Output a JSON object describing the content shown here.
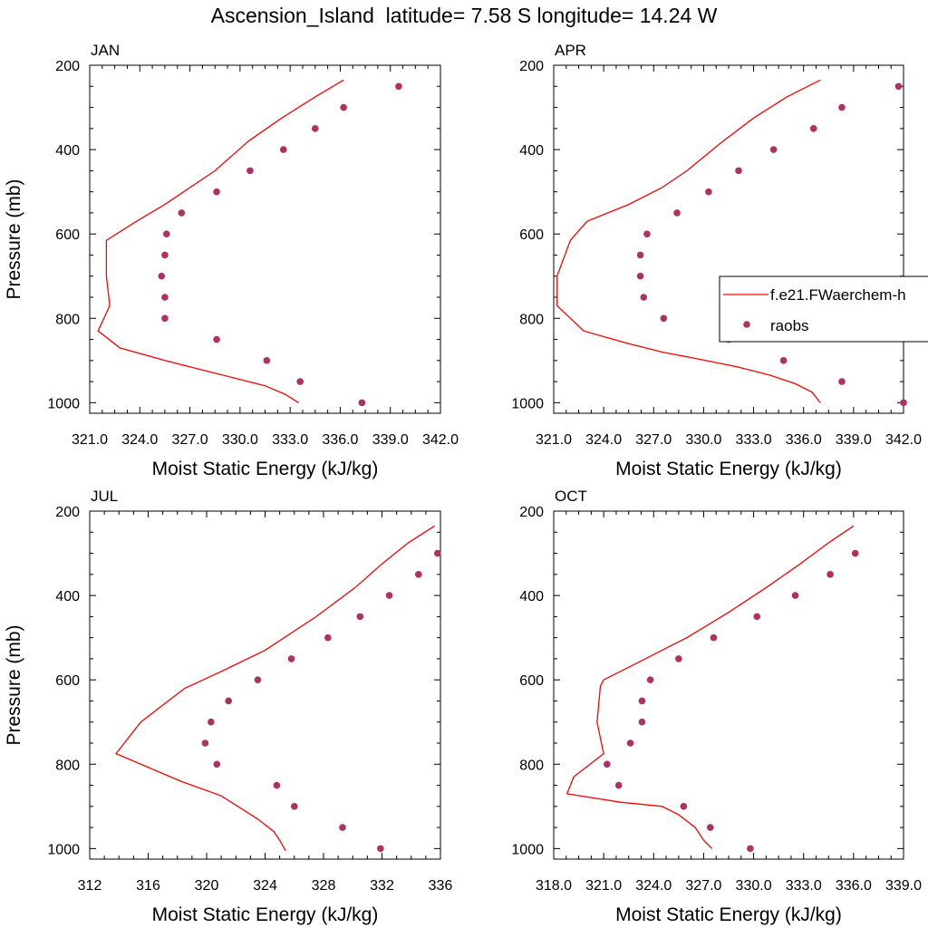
{
  "page": {
    "title": "Ascension_Island  latitude= 7.58 S longitude= 14.24 W"
  },
  "colors": {
    "model_line": "#ff0000",
    "obs_marker": "#b03060",
    "axis": "#000000"
  },
  "chart_data": [
    {
      "type": "line+scatter",
      "title": "JAN",
      "xlabel": "Moist Static Energy (kJ/kg)",
      "ylabel": "Pressure (mb)",
      "xlim": [
        321,
        342
      ],
      "ylim": [
        200,
        1025
      ],
      "y_reversed": true,
      "xticks": [
        "321.0",
        "324.0",
        "327.0",
        "330.0",
        "333.0",
        "336.0",
        "339.0",
        "342.0"
      ],
      "xtick_values": [
        321,
        324,
        327,
        330,
        333,
        336,
        339,
        342
      ],
      "yticks": [
        "200",
        "400",
        "600",
        "800",
        "1000"
      ],
      "ytick_values": [
        200,
        400,
        600,
        800,
        1000
      ],
      "grid": false,
      "series": [
        {
          "name": "",
          "kind": "line",
          "x": [
            336.2,
            334.5,
            332.5,
            330.5,
            328.5,
            325.5,
            323.8,
            322.0,
            322.0,
            322.2,
            321.5,
            322.8,
            325.5,
            327.5,
            329.5,
            331.5,
            332.7,
            333.5
          ],
          "y": [
            235,
            275,
            325,
            380,
            450,
            530,
            570,
            615,
            700,
            770,
            830,
            870,
            900,
            920,
            940,
            960,
            980,
            1000
          ]
        },
        {
          "name": "",
          "kind": "scatter",
          "x": [
            339.5,
            336.2,
            334.5,
            332.6,
            330.6,
            328.6,
            326.5,
            325.6,
            325.5,
            325.3,
            325.5,
            325.5,
            328.6,
            331.6,
            333.6,
            337.3
          ],
          "y": [
            250,
            300,
            350,
            400,
            450,
            500,
            550,
            600,
            650,
            700,
            750,
            800,
            850,
            900,
            950,
            1000
          ]
        }
      ]
    },
    {
      "type": "line+scatter",
      "title": "APR",
      "xlabel": "Moist Static Energy (kJ/kg)",
      "ylabel": "",
      "xlim": [
        321,
        342
      ],
      "ylim": [
        200,
        1025
      ],
      "y_reversed": true,
      "xticks": [
        "321.0",
        "324.0",
        "327.0",
        "330.0",
        "333.0",
        "336.0",
        "339.0",
        "342.0"
      ],
      "xtick_values": [
        321,
        324,
        327,
        330,
        333,
        336,
        339,
        342
      ],
      "yticks": [
        "200",
        "400",
        "600",
        "800",
        "1000"
      ],
      "ytick_values": [
        200,
        400,
        600,
        800,
        1000
      ],
      "grid": false,
      "legend": {
        "position": "right",
        "entries": [
          "f.e21.FWaerchem-h",
          "raobs"
        ]
      },
      "series": [
        {
          "name": "f.e21.FWaerchem-h",
          "kind": "line",
          "x": [
            337.0,
            335.0,
            333.0,
            331.0,
            329.0,
            327.5,
            325.5,
            323.0,
            322.0,
            321.2,
            321.2,
            321.2,
            322.8,
            325.5,
            327.5,
            329.5,
            332.0,
            334.0,
            335.5,
            336.5,
            337.0
          ],
          "y": [
            235,
            275,
            325,
            385,
            450,
            490,
            530,
            570,
            615,
            700,
            730,
            770,
            830,
            860,
            880,
            895,
            915,
            935,
            955,
            975,
            1000
          ]
        },
        {
          "name": "raobs",
          "kind": "scatter",
          "x": [
            341.7,
            338.3,
            336.6,
            334.2,
            332.1,
            330.3,
            328.4,
            326.6,
            326.2,
            326.2,
            326.4,
            327.6,
            331.5,
            334.8,
            338.3,
            342.0
          ],
          "y": [
            250,
            300,
            350,
            400,
            450,
            500,
            550,
            600,
            650,
            700,
            750,
            800,
            850,
            900,
            950,
            1000
          ]
        }
      ]
    },
    {
      "type": "line+scatter",
      "title": "JUL",
      "xlabel": "Moist Static Energy (kJ/kg)",
      "ylabel": "Pressure (mb)",
      "xlim": [
        312,
        336
      ],
      "ylim": [
        200,
        1025
      ],
      "y_reversed": true,
      "xticks": [
        "312",
        "316",
        "320",
        "324",
        "328",
        "332",
        "336"
      ],
      "xtick_values": [
        312,
        316,
        320,
        324,
        328,
        332,
        336
      ],
      "yticks": [
        "200",
        "400",
        "600",
        "800",
        "1000"
      ],
      "ytick_values": [
        200,
        400,
        600,
        800,
        1000
      ],
      "grid": false,
      "series": [
        {
          "name": "",
          "kind": "line",
          "x": [
            335.6,
            333.8,
            332.0,
            330.2,
            327.5,
            324.0,
            321.0,
            318.5,
            315.5,
            313.8,
            318.2,
            321.0,
            323.5,
            324.6,
            325.0,
            325.4
          ],
          "y": [
            235,
            275,
            325,
            380,
            450,
            530,
            580,
            620,
            700,
            775,
            840,
            875,
            930,
            960,
            980,
            1005
          ]
        },
        {
          "name": "",
          "kind": "scatter",
          "x": [
            335.8,
            334.5,
            332.5,
            330.5,
            328.3,
            325.8,
            323.5,
            321.5,
            320.3,
            319.9,
            320.7,
            324.8,
            326.0,
            329.3,
            331.9
          ],
          "y": [
            300,
            350,
            400,
            450,
            500,
            550,
            600,
            650,
            700,
            750,
            800,
            850,
            900,
            950,
            1000
          ]
        }
      ]
    },
    {
      "type": "line+scatter",
      "title": "OCT",
      "xlabel": "Moist Static Energy (kJ/kg)",
      "ylabel": "",
      "xlim": [
        318,
        339
      ],
      "ylim": [
        200,
        1025
      ],
      "y_reversed": true,
      "xticks": [
        "318.0",
        "321.0",
        "324.0",
        "327.0",
        "330.0",
        "333.0",
        "336.0",
        "339.0"
      ],
      "xtick_values": [
        318,
        321,
        324,
        327,
        330,
        333,
        336,
        339
      ],
      "yticks": [
        "200",
        "400",
        "600",
        "800",
        "1000"
      ],
      "ytick_values": [
        200,
        400,
        600,
        800,
        1000
      ],
      "grid": false,
      "series": [
        {
          "name": "",
          "kind": "line",
          "x": [
            336.0,
            334.5,
            332.8,
            330.8,
            328.5,
            326.0,
            323.5,
            321.0,
            320.8,
            320.6,
            321.0,
            319.2,
            318.8,
            322.0,
            324.5,
            325.5,
            326.5,
            327.0,
            327.5
          ],
          "y": [
            235,
            275,
            325,
            380,
            440,
            500,
            550,
            600,
            615,
            700,
            775,
            830,
            870,
            890,
            900,
            920,
            950,
            980,
            1000
          ]
        },
        {
          "name": "",
          "kind": "scatter",
          "x": [
            336.1,
            334.6,
            332.5,
            330.2,
            327.6,
            325.5,
            323.8,
            323.3,
            323.3,
            322.6,
            321.2,
            321.9,
            325.8,
            327.4,
            329.8
          ],
          "y": [
            300,
            350,
            400,
            450,
            500,
            550,
            600,
            650,
            700,
            750,
            800,
            850,
            900,
            950,
            1000
          ]
        }
      ]
    }
  ]
}
